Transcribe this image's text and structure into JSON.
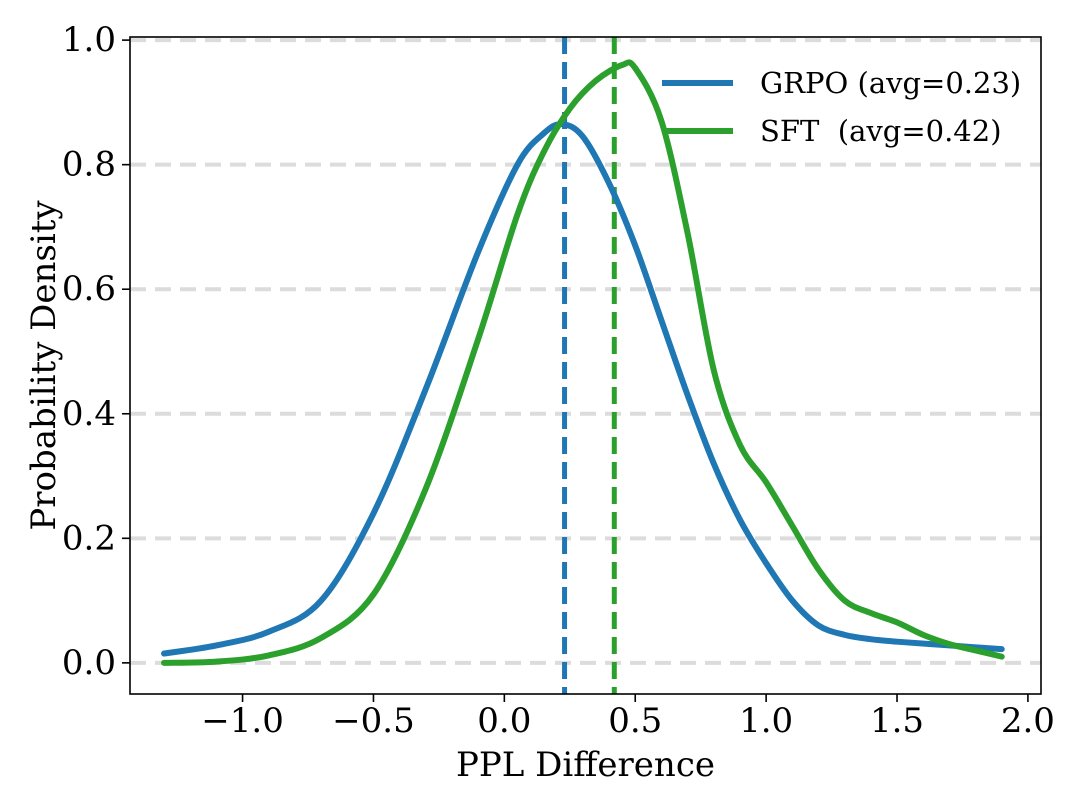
{
  "chart_data": {
    "type": "line",
    "title": "",
    "xlabel": "PPL Difference",
    "ylabel": "Probability Density",
    "xlim": [
      -1.43,
      2.05
    ],
    "ylim": [
      -0.05,
      1.005
    ],
    "xticks": [
      -1.0,
      -0.5,
      0.0,
      0.5,
      1.0,
      1.5,
      2.0
    ],
    "xtick_labels": [
      "−1.0",
      "−0.5",
      "0.0",
      "0.5",
      "1.0",
      "1.5",
      "2.0"
    ],
    "yticks": [
      0.0,
      0.2,
      0.4,
      0.6,
      0.8,
      1.0
    ],
    "ytick_labels": [
      "0.0",
      "0.2",
      "0.4",
      "0.6",
      "0.8",
      "1.0"
    ],
    "grid": "horizontal dashed",
    "legend_position": "top-right",
    "series": [
      {
        "name": "GRPO",
        "legend": "GRPO (avg=0.23)",
        "color": "#1f77b4",
        "average": 0.23,
        "x": [
          -1.3,
          -1.1,
          -0.9,
          -0.7,
          -0.5,
          -0.3,
          -0.1,
          0.05,
          0.15,
          0.22,
          0.3,
          0.4,
          0.5,
          0.6,
          0.7,
          0.8,
          0.9,
          1.0,
          1.1,
          1.2,
          1.3,
          1.4,
          1.5,
          1.7,
          1.9
        ],
        "y": [
          0.015,
          0.028,
          0.05,
          0.1,
          0.24,
          0.44,
          0.66,
          0.8,
          0.85,
          0.865,
          0.845,
          0.77,
          0.67,
          0.55,
          0.43,
          0.32,
          0.23,
          0.16,
          0.1,
          0.06,
          0.045,
          0.038,
          0.034,
          0.028,
          0.022
        ]
      },
      {
        "name": "SFT",
        "legend": "SFT  (avg=0.42)",
        "color": "#2ca02c",
        "average": 0.42,
        "x": [
          -1.3,
          -1.1,
          -0.9,
          -0.7,
          -0.5,
          -0.3,
          -0.1,
          0.05,
          0.15,
          0.25,
          0.35,
          0.45,
          0.5,
          0.6,
          0.7,
          0.8,
          0.9,
          1.0,
          1.1,
          1.2,
          1.3,
          1.4,
          1.5,
          1.6,
          1.7,
          1.8,
          1.9
        ],
        "y": [
          0.0,
          0.002,
          0.012,
          0.04,
          0.11,
          0.28,
          0.52,
          0.72,
          0.82,
          0.89,
          0.935,
          0.96,
          0.955,
          0.87,
          0.69,
          0.47,
          0.35,
          0.29,
          0.22,
          0.15,
          0.1,
          0.08,
          0.065,
          0.045,
          0.03,
          0.02,
          0.01
        ]
      }
    ]
  }
}
